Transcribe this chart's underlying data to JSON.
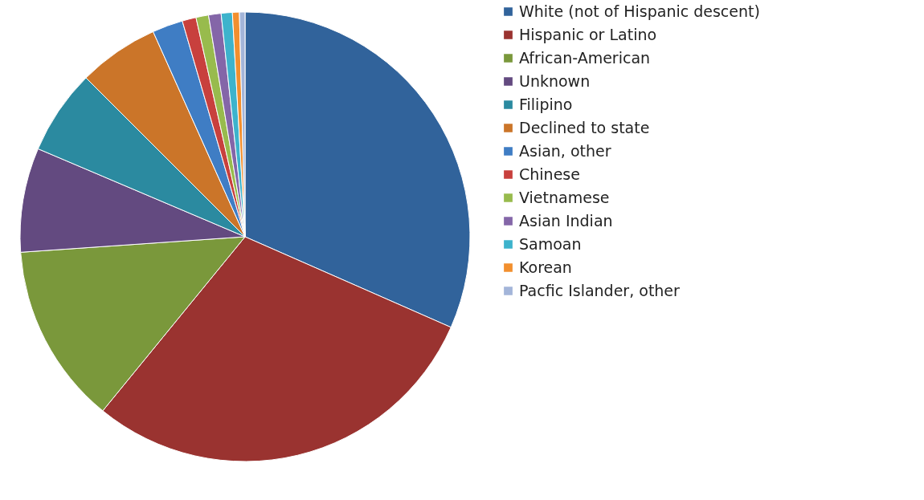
{
  "chart_data": {
    "type": "pie",
    "categories": [
      "White (not of Hispanic descent)",
      "Hispanic or Latino",
      "African-American",
      "Unknown",
      "Filipino",
      "Declined to state",
      "Asian, other",
      "Chinese",
      "Vietnamese",
      "Asian Indian",
      "Samoan",
      "Korean",
      "Pacfic Islander, other"
    ],
    "values": [
      31.6,
      29.3,
      13.0,
      7.5,
      6.1,
      5.8,
      2.2,
      1.0,
      0.9,
      0.9,
      0.8,
      0.5,
      0.4
    ],
    "colors": [
      "#31639b",
      "#9a3330",
      "#7a983b",
      "#634a80",
      "#2b8aa0",
      "#cb7529",
      "#3f7dc4",
      "#c8403d",
      "#98bb4d",
      "#8466a8",
      "#3db3cc",
      "#f28f2e",
      "#a3b5d9"
    ],
    "legend": "right"
  }
}
